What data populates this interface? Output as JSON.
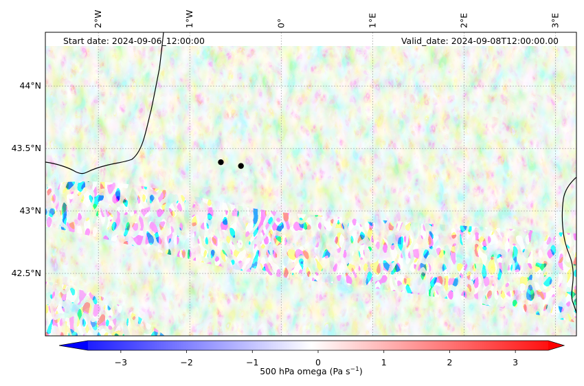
{
  "header": {
    "start_date": "Start date: 2024-09-06_12:00:00",
    "valid_date": "Valid_date: 2024-09-08T12:00:00.00"
  },
  "lon_ticks": [
    {
      "value": -2,
      "label": "2°W"
    },
    {
      "value": -1,
      "label": "1°W"
    },
    {
      "value": 0,
      "label": "0°"
    },
    {
      "value": 1,
      "label": "1°E"
    },
    {
      "value": 2,
      "label": "2°E"
    },
    {
      "value": 3,
      "label": "3°E"
    }
  ],
  "lat_ticks": [
    {
      "value": 44.0,
      "label": "44°N"
    },
    {
      "value": 43.5,
      "label": "43.5°N"
    },
    {
      "value": 43.0,
      "label": "43°N"
    },
    {
      "value": 42.5,
      "label": "42.5°N"
    }
  ],
  "extent": {
    "lon_min": -2.58,
    "lon_max": 3.23,
    "lat_min": 42.0,
    "lat_max": 44.43
  },
  "points": [
    {
      "lon": -0.66,
      "lat": 43.39
    },
    {
      "lon": -0.44,
      "lat": 43.36
    }
  ],
  "colorbar": {
    "label": "500 hPa omega (Pa s",
    "label_sup": "−1",
    "label_end": ")",
    "min": -3.5,
    "max": 3.5,
    "ticks": [
      {
        "value": -3,
        "label": "−3"
      },
      {
        "value": -2,
        "label": "−2"
      },
      {
        "value": -1,
        "label": "−1"
      },
      {
        "value": 0,
        "label": "0"
      },
      {
        "value": 1,
        "label": "1"
      },
      {
        "value": 2,
        "label": "2"
      },
      {
        "value": 3,
        "label": "3"
      }
    ],
    "colormap": "bwr",
    "colors": {
      "low": "#0000ff",
      "mid": "#ffffff",
      "high": "#ff0000"
    }
  }
}
